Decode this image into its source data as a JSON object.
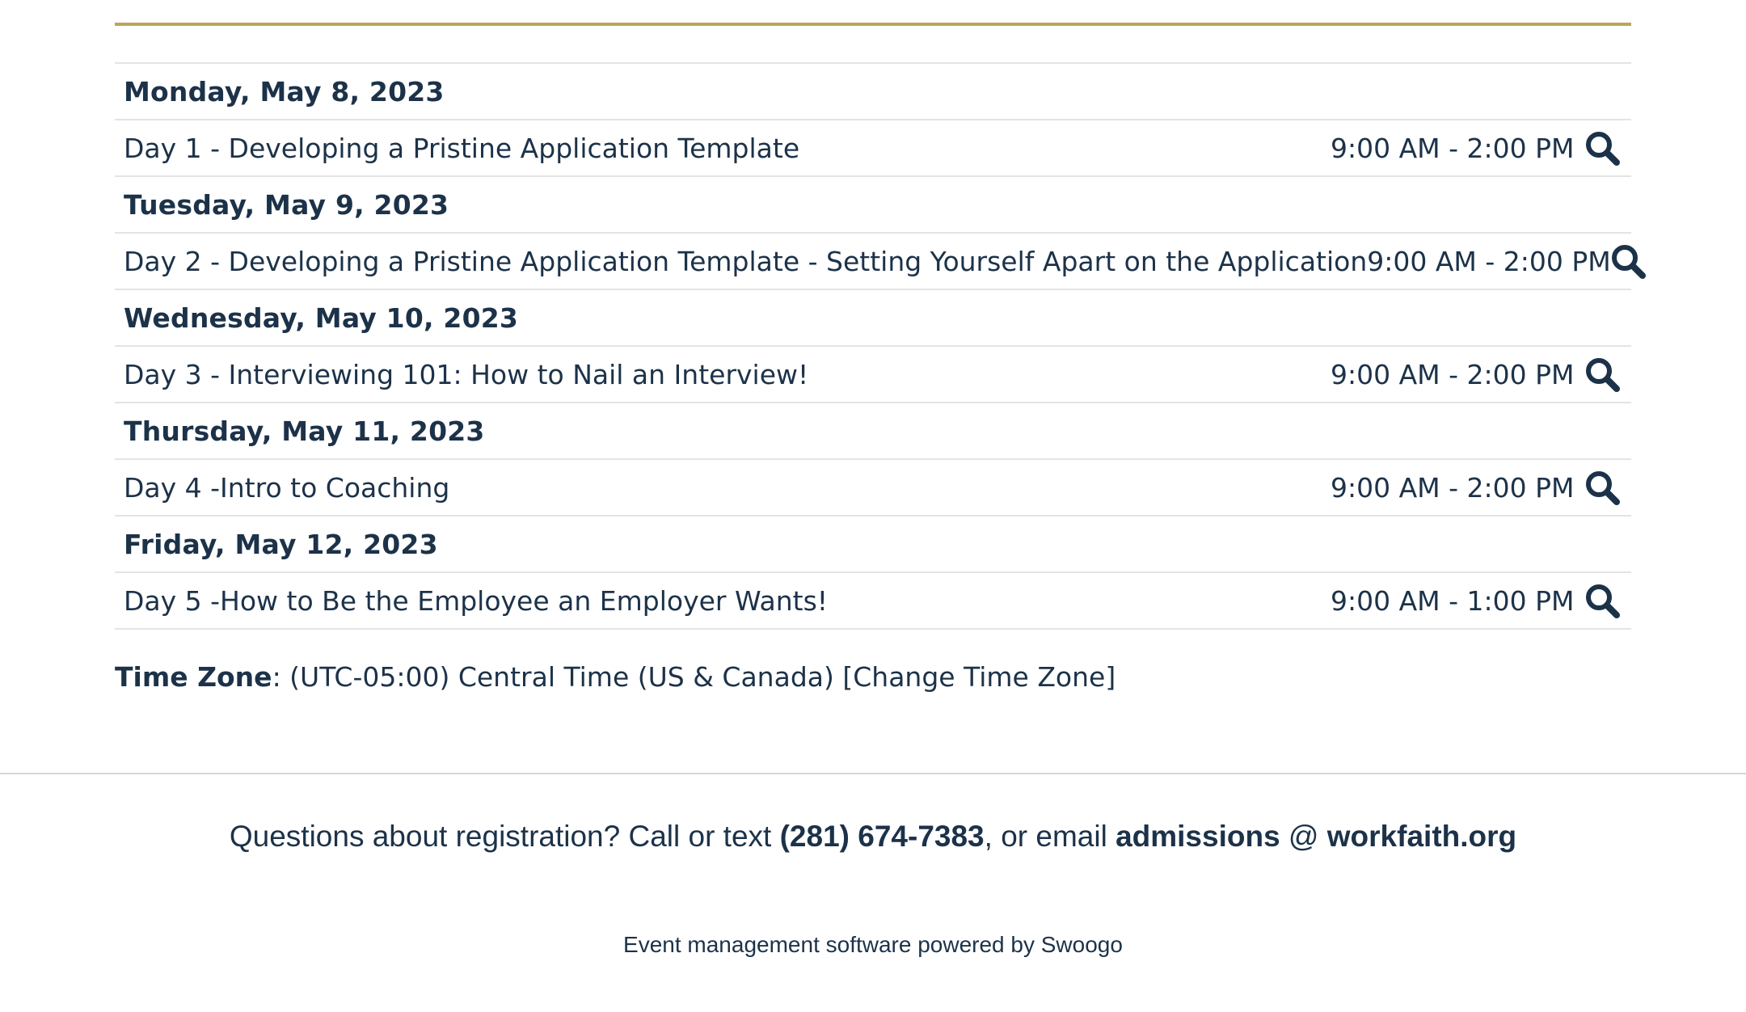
{
  "colors": {
    "text": "#1c3249",
    "accent_rule": "#bea45c",
    "row_border": "#e2e4e6"
  },
  "schedule": [
    {
      "date": "Monday, May 8, 2023",
      "session": {
        "title": "Day 1 - Developing a Pristine Application Template",
        "time": "9:00 AM - 2:00 PM",
        "icon": "search-icon"
      }
    },
    {
      "date": "Tuesday, May 9, 2023",
      "session": {
        "title": "Day 2 - Developing a Pristine Application Template - Setting Yourself Apart on the Application",
        "time": "9:00 AM - 2:00 PM",
        "icon": "search-icon"
      }
    },
    {
      "date": "Wednesday, May 10, 2023",
      "session": {
        "title": "Day 3 - Interviewing 101: How to Nail an Interview!",
        "time": "9:00 AM - 2:00 PM",
        "icon": "search-icon"
      }
    },
    {
      "date": "Thursday, May 11, 2023",
      "session": {
        "title": "Day 4 -Intro to Coaching",
        "time": "9:00 AM - 2:00 PM",
        "icon": "search-icon"
      }
    },
    {
      "date": "Friday, May 12, 2023",
      "session": {
        "title": "Day 5 -How to Be the Employee an Employer Wants!",
        "time": "9:00 AM - 1:00 PM",
        "icon": "search-icon"
      }
    }
  ],
  "timezone": {
    "label": "Time Zone",
    "separator": ": ",
    "value": "(UTC-05:00) Central Time (US & Canada) ",
    "change_link": "[Change Time Zone]"
  },
  "contact": {
    "prefix": "Questions about registration? Call or text ",
    "phone": "(281) 674-7383",
    "middle": ", or email ",
    "email_user": "admissions",
    "at": " @ ",
    "email_domain": "workfaith.org"
  },
  "footer": {
    "powered_by": "Event management software powered by Swoogo"
  }
}
